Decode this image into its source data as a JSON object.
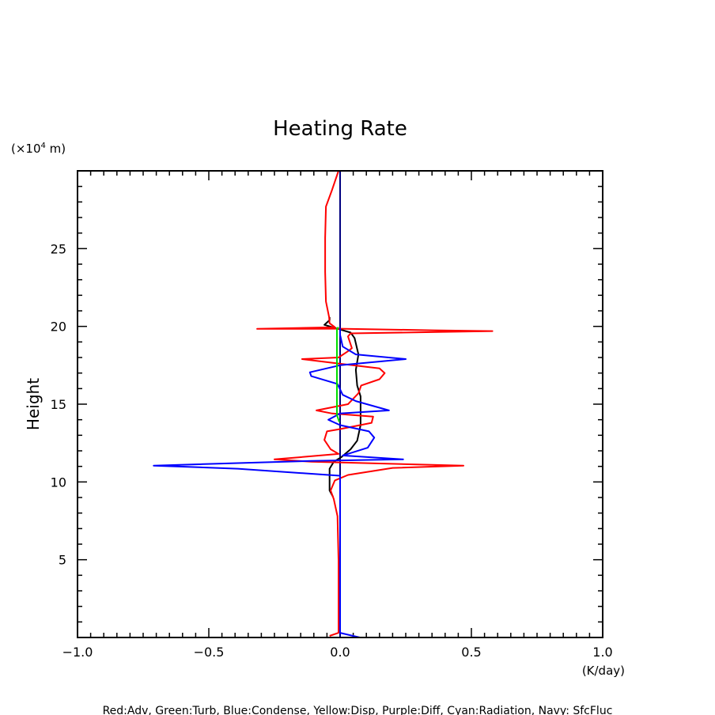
{
  "chart_data": {
    "type": "line",
    "title": "Heating Rate",
    "xlabel": "(K/day)",
    "ylabel": "Height",
    "y_unit": "(x10^4 m)",
    "y_unit_prefix": "(×10",
    "y_unit_exp": "4",
    "y_unit_suffix": " m)",
    "xlim": [
      -1.0,
      1.0
    ],
    "ylim": [
      0,
      30
    ],
    "xticks": [
      -1.0,
      -0.5,
      0.0,
      0.5,
      1.0
    ],
    "xtick_labels": [
      "−1.0",
      "−0.5",
      "0.0",
      "0.5",
      "1.0"
    ],
    "yticks": [
      5,
      10,
      15,
      20,
      25
    ],
    "ytick_labels": [
      "5",
      "10",
      "15",
      "20",
      "25"
    ],
    "legend_text": "Red:Adv, Green:Turb, Blue:Condense, Yellow:Disp, Purple:Diff, Cyan:Radiation, Navy: SfcFluc",
    "series": [
      {
        "name": "Navy: SfcFluc",
        "color": "#000080",
        "points": [
          [
            0,
            0
          ],
          [
            0,
            30
          ]
        ]
      },
      {
        "name": "Black",
        "color": "#000000",
        "points": [
          [
            -0.04,
            20.6
          ],
          [
            -0.04,
            20.4
          ],
          [
            -0.06,
            20.1
          ],
          [
            -0.01,
            19.85
          ],
          [
            0.04,
            19.6
          ],
          [
            0.055,
            19.25
          ],
          [
            0.07,
            18.2
          ],
          [
            0.06,
            17.2
          ],
          [
            0.065,
            16.2
          ],
          [
            0.078,
            15.5
          ],
          [
            0.078,
            13.65
          ],
          [
            0.065,
            12.65
          ],
          [
            0.04,
            12.1
          ],
          [
            0.005,
            11.6
          ],
          [
            -0.024,
            11.3
          ],
          [
            -0.04,
            10.85
          ],
          [
            -0.04,
            9.95
          ],
          [
            -0.04,
            9.45
          ],
          [
            -0.027,
            9.05
          ]
        ]
      },
      {
        "name": "Red:Adv",
        "color": "#ff0000",
        "points": [
          [
            -0.006,
            30
          ],
          [
            -0.03,
            28.8
          ],
          [
            -0.054,
            27.7
          ],
          [
            -0.057,
            25.7
          ],
          [
            -0.057,
            23.5
          ],
          [
            -0.054,
            21.6
          ],
          [
            -0.042,
            20.6
          ],
          [
            -0.04,
            20.2
          ],
          [
            -0.02,
            19.95
          ],
          [
            -0.316,
            19.84
          ],
          [
            0.0,
            19.85
          ],
          [
            0.355,
            19.75
          ],
          [
            0.58,
            19.7
          ],
          [
            0.04,
            19.55
          ],
          [
            0.03,
            19.35
          ],
          [
            0.045,
            18.6
          ],
          [
            0.03,
            18.4
          ],
          [
            -0.006,
            18.0
          ],
          [
            -0.145,
            17.9
          ],
          [
            0.0,
            17.6
          ],
          [
            0.15,
            17.3
          ],
          [
            0.17,
            17.0
          ],
          [
            0.15,
            16.6
          ],
          [
            0.08,
            16.2
          ],
          [
            0.07,
            15.7
          ],
          [
            0.03,
            15.0
          ],
          [
            -0.09,
            14.6
          ],
          [
            -0.03,
            14.4
          ],
          [
            0.126,
            14.2
          ],
          [
            0.12,
            13.8
          ],
          [
            0.0,
            13.4
          ],
          [
            -0.05,
            13.25
          ],
          [
            -0.06,
            12.7
          ],
          [
            -0.036,
            12.1
          ],
          [
            -0.006,
            11.8
          ],
          [
            -0.25,
            11.45
          ],
          [
            -0.11,
            11.3
          ],
          [
            0.47,
            11.05
          ],
          [
            0.2,
            10.9
          ],
          [
            0.03,
            10.45
          ],
          [
            -0.02,
            10.1
          ],
          [
            -0.036,
            9.45
          ],
          [
            -0.024,
            8.9
          ],
          [
            -0.01,
            7.8
          ],
          [
            -0.006,
            5
          ],
          [
            -0.006,
            0.3
          ],
          [
            -0.04,
            0.1
          ]
        ]
      },
      {
        "name": "Blue:Condense",
        "color": "#0000ff",
        "points": [
          [
            0.0,
            19.9
          ],
          [
            0.0,
            19.45
          ],
          [
            0.01,
            18.7
          ],
          [
            0.06,
            18.2
          ],
          [
            0.25,
            17.9
          ],
          [
            0.0,
            17.5
          ],
          [
            -0.115,
            17.05
          ],
          [
            -0.11,
            16.8
          ],
          [
            -0.01,
            16.3
          ],
          [
            0.01,
            15.6
          ],
          [
            0.06,
            15.2
          ],
          [
            0.186,
            14.6
          ],
          [
            0.0,
            14.4
          ],
          [
            -0.045,
            14.0
          ],
          [
            0.0,
            13.65
          ],
          [
            0.11,
            13.25
          ],
          [
            0.13,
            12.85
          ],
          [
            0.105,
            12.2
          ],
          [
            0.01,
            11.7
          ],
          [
            0.24,
            11.45
          ],
          [
            -0.11,
            11.35
          ],
          [
            -0.71,
            11.05
          ],
          [
            -0.39,
            10.85
          ],
          [
            0.0,
            10.4
          ],
          [
            0.0,
            0.3
          ],
          [
            0.075,
            0.0
          ]
        ]
      },
      {
        "name": "Green:Turb",
        "color": "#00e000",
        "points": [
          [
            -0.006,
            19.95
          ],
          [
            -0.012,
            19.85
          ],
          [
            -0.012,
            14.3
          ],
          [
            -0.003,
            13.85
          ]
        ]
      }
    ]
  }
}
